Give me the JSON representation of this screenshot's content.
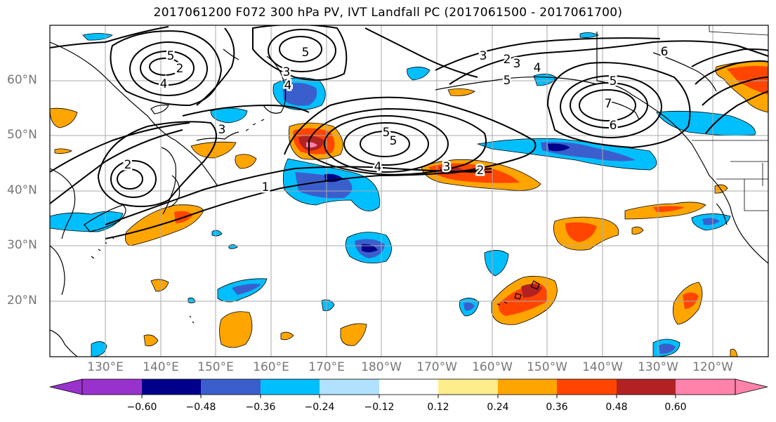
{
  "title": "2017061200 F072 300 hPa PV, IVT Landfall PC (2017061500 - 2017061700)",
  "lat_labels": [
    "60°N",
    "50°N",
    "40°N",
    "30°N",
    "20°N"
  ],
  "lon_labels": [
    "130°E",
    "140°E",
    "150°E",
    "160°E",
    "170°E",
    "180°W",
    "170°W",
    "160°W",
    "150°W",
    "140°W",
    "130°W",
    "120°W"
  ],
  "colorbar": {
    "tick_labels": [
      "−0.60",
      "−0.48",
      "−0.36",
      "−0.24",
      "−0.12",
      "0.12",
      "0.24",
      "0.36",
      "0.48",
      "0.60"
    ],
    "colors": [
      "#9932CC",
      "#00008B",
      "#3A5FCD",
      "#00BFFF",
      "#B0E2FF",
      "#FFFFFF",
      "#FFEC8B",
      "#FFA500",
      "#FF4500",
      "#B22222",
      "#FF82AB"
    ]
  },
  "contour_labels": [
    "5",
    "4",
    "2",
    "5",
    "3",
    "4",
    "3",
    "2",
    "5",
    "3",
    "4",
    "5",
    "5",
    "7",
    "6",
    "5",
    "6",
    "4",
    "3",
    "2",
    "1",
    "3",
    "2"
  ]
}
